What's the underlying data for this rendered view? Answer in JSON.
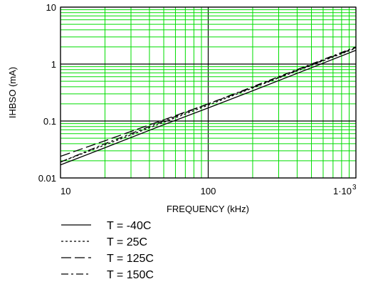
{
  "chart_data": {
    "type": "line",
    "title": "",
    "xlabel": "FREQUENCY (kHz)",
    "ylabel": "IHBSO (mA)",
    "x_scale": "log",
    "y_scale": "log",
    "xlim": [
      10,
      1000
    ],
    "ylim": [
      0.01,
      10
    ],
    "grid": true,
    "legend_position": "bottom-left",
    "x_ticks": [
      {
        "value": 10,
        "label": "10"
      },
      {
        "value": 100,
        "label": "100"
      },
      {
        "value": 1000,
        "label": "1·10",
        "exponent": "3"
      }
    ],
    "y_ticks": [
      {
        "value": 10,
        "label": "10"
      },
      {
        "value": 1,
        "label": "1"
      },
      {
        "value": 0.1,
        "label": "0.1"
      },
      {
        "value": 0.01,
        "label": "0.01"
      }
    ],
    "colors": {
      "grid": "#00dd00",
      "major_grid": "#000000",
      "series": "#000000"
    },
    "series": [
      {
        "name": "T = -40C",
        "dash": "solid",
        "x": [
          10,
          20,
          50,
          100,
          200,
          500,
          1000
        ],
        "y": [
          0.017,
          0.034,
          0.086,
          0.17,
          0.34,
          0.86,
          1.75
        ]
      },
      {
        "name": "T = 25C",
        "dash": "dotted",
        "x": [
          10,
          20,
          50,
          100,
          200,
          500,
          1000
        ],
        "y": [
          0.019,
          0.038,
          0.095,
          0.19,
          0.38,
          0.95,
          1.9
        ]
      },
      {
        "name": "T = 125C",
        "dash": "long-dash",
        "x": [
          10,
          20,
          50,
          100,
          200,
          500,
          1000
        ],
        "y": [
          0.024,
          0.045,
          0.105,
          0.2,
          0.39,
          0.97,
          1.95
        ]
      },
      {
        "name": "T = 150C",
        "dash": "dash-dot",
        "x": [
          10,
          20,
          50,
          100,
          200,
          500,
          1000
        ],
        "y": [
          0.019,
          0.04,
          0.1,
          0.2,
          0.4,
          1.0,
          2.0
        ]
      }
    ]
  }
}
